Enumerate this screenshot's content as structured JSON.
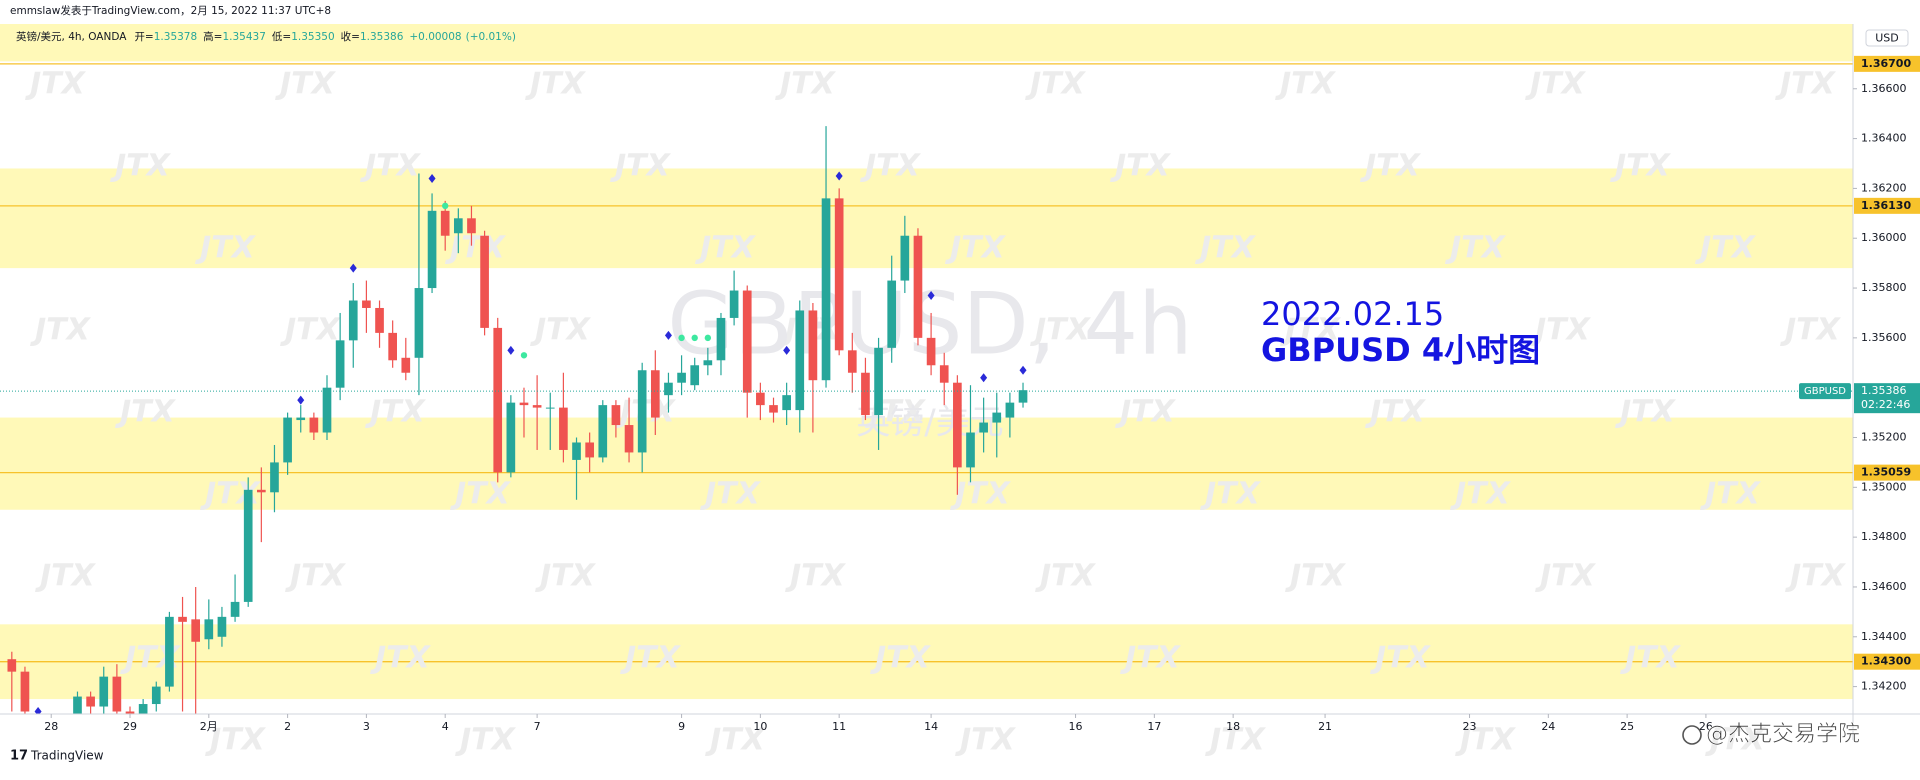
{
  "chart_data": {
    "type": "candlestick",
    "header": "emmslaw发表于TradingView.com，2月 15, 2022 11:37 UTC+8",
    "symbol_line": "英镑/美元, 4h, OANDA",
    "ohlc_legend": [
      {
        "key": "开=",
        "value": "1.35378"
      },
      {
        "key": "高=",
        "value": "1.35437"
      },
      {
        "key": "低=",
        "value": "1.35350"
      },
      {
        "key": "收=",
        "value": "1.35386"
      },
      {
        "key": "+0.00008",
        "value": "(+0.01%)"
      }
    ],
    "watermark_symbol": "GBPUSD, 4h",
    "watermark_name": "英镑/美元",
    "watermark_logo": "JTX",
    "annotation": [
      "2022.02.15",
      "GBPUSD 4小时图"
    ],
    "annotation_color": "#1414e0",
    "currency": "USD",
    "footer_brand": "TradingView",
    "footer_credit": "@杰克交易学院",
    "up_color": "#26a69a",
    "down_color": "#ef5350",
    "zone_color": "#fff9b8",
    "level_color": "#f7c22b",
    "ylim": [
      1.3409,
      1.3686
    ],
    "xlim": [
      -0.9,
      140.2
    ],
    "yticks": [
      {
        "value": 1.366,
        "label": "1.36600"
      },
      {
        "value": 1.364,
        "label": "1.36400"
      },
      {
        "value": 1.362,
        "label": "1.36200"
      },
      {
        "value": 1.36,
        "label": "1.36000"
      },
      {
        "value": 1.358,
        "label": "1.35800"
      },
      {
        "value": 1.356,
        "label": "1.35600"
      },
      {
        "value": 1.352,
        "label": "1.35200"
      },
      {
        "value": 1.35,
        "label": "1.35000"
      },
      {
        "value": 1.348,
        "label": "1.34800"
      },
      {
        "value": 1.346,
        "label": "1.34600"
      },
      {
        "value": 1.344,
        "label": "1.34400"
      },
      {
        "value": 1.342,
        "label": "1.34200"
      }
    ],
    "xticks": [
      {
        "value": 3,
        "label": "28"
      },
      {
        "value": 9,
        "label": "29"
      },
      {
        "value": 15,
        "label": "2月"
      },
      {
        "value": 21,
        "label": "2"
      },
      {
        "value": 27,
        "label": "3"
      },
      {
        "value": 33,
        "label": "4"
      },
      {
        "value": 40,
        "label": "7"
      },
      {
        "value": 51,
        "label": "9"
      },
      {
        "value": 57,
        "label": "10"
      },
      {
        "value": 63,
        "label": "11"
      },
      {
        "value": 70,
        "label": "14"
      },
      {
        "value": 81,
        "label": "16"
      },
      {
        "value": 87,
        "label": "17"
      },
      {
        "value": 93,
        "label": "18"
      },
      {
        "value": 100,
        "label": "21"
      },
      {
        "value": 111,
        "label": "23"
      },
      {
        "value": 117,
        "label": "24"
      },
      {
        "value": 123,
        "label": "25"
      },
      {
        "value": 129,
        "label": "26"
      }
    ],
    "zones": [
      [
        1.3671,
        1.3686
      ],
      [
        1.3588,
        1.3628
      ],
      [
        1.3491,
        1.3528
      ],
      [
        1.3415,
        1.3445
      ]
    ],
    "levels": [
      {
        "value": 1.367,
        "label": "1.36700"
      },
      {
        "value": 1.3613,
        "label": "1.36130"
      },
      {
        "value": 1.35059,
        "label": "1.35059"
      },
      {
        "value": 1.343,
        "label": "1.34300"
      }
    ],
    "last_price": {
      "value": 1.35386,
      "label": "1.35386"
    },
    "symbol_tag": "GBPUSD",
    "countdown": "02:22:46",
    "open": [
      1.3431,
      1.3426,
      1.3409,
      1.3405,
      1.3408,
      1.3408,
      1.3416,
      1.3412,
      1.3424,
      1.341,
      1.3405,
      1.3413,
      1.342,
      1.3448,
      1.3447,
      1.3439,
      1.344,
      1.3448,
      1.3454,
      1.3499,
      1.3498,
      1.351,
      1.3527,
      1.3528,
      1.3522,
      1.354,
      1.3559,
      1.3575,
      1.3572,
      1.3562,
      1.3552,
      1.3552,
      1.358,
      1.3611,
      1.3602,
      1.3608,
      1.3601,
      1.3564,
      1.3506,
      1.3534,
      1.3533,
      1.3532,
      1.3532,
      1.3511,
      1.3518,
      1.3512,
      1.3533,
      1.3525,
      1.3514,
      1.3547,
      1.3537,
      1.3542,
      1.3541,
      1.3549,
      1.3551,
      1.3568,
      1.3579,
      1.3538,
      1.3533,
      1.3531,
      1.3531,
      1.3571,
      1.3543,
      1.3616,
      1.3555,
      1.3546,
      1.3529,
      1.3556,
      1.3583,
      1.3601,
      1.356,
      1.3549,
      1.3542,
      1.3508,
      1.3522,
      1.3526,
      1.3528,
      1.3534
    ],
    "high": [
      1.3434,
      1.3428,
      1.3411,
      1.3409,
      1.3409,
      1.3418,
      1.3418,
      1.3428,
      1.3429,
      1.3412,
      1.3415,
      1.3422,
      1.345,
      1.3456,
      1.346,
      1.3455,
      1.3452,
      1.3465,
      1.3504,
      1.3508,
      1.3517,
      1.353,
      1.3533,
      1.353,
      1.3545,
      1.357,
      1.3582,
      1.3583,
      1.3575,
      1.3567,
      1.356,
      1.3626,
      1.3618,
      1.3615,
      1.3612,
      1.3613,
      1.3603,
      1.3568,
      1.3537,
      1.354,
      1.3545,
      1.3538,
      1.3546,
      1.352,
      1.3522,
      1.3535,
      1.3535,
      1.3536,
      1.355,
      1.3555,
      1.3546,
      1.3553,
      1.3552,
      1.3556,
      1.357,
      1.3587,
      1.3581,
      1.3542,
      1.3536,
      1.3542,
      1.3575,
      1.3574,
      1.3645,
      1.362,
      1.3562,
      1.3552,
      1.356,
      1.3593,
      1.3609,
      1.3604,
      1.357,
      1.3554,
      1.3545,
      1.3541,
      1.3536,
      1.3538,
      1.3538,
      1.3542
    ],
    "low": [
      1.341,
      1.3405,
      1.3403,
      1.3403,
      1.3403,
      1.3405,
      1.3408,
      1.3405,
      1.3405,
      1.3403,
      1.3404,
      1.341,
      1.3418,
      1.341,
      1.3405,
      1.3435,
      1.3436,
      1.3446,
      1.3452,
      1.3478,
      1.349,
      1.3505,
      1.3522,
      1.3519,
      1.3519,
      1.3535,
      1.3548,
      1.3562,
      1.3556,
      1.3548,
      1.3543,
      1.3537,
      1.3578,
      1.3595,
      1.3594,
      1.3597,
      1.3561,
      1.3502,
      1.3504,
      1.352,
      1.3515,
      1.3515,
      1.351,
      1.3495,
      1.3506,
      1.351,
      1.352,
      1.351,
      1.3506,
      1.3521,
      1.353,
      1.3537,
      1.3539,
      1.3545,
      1.3545,
      1.3565,
      1.3528,
      1.3527,
      1.3526,
      1.3525,
      1.3522,
      1.3522,
      1.354,
      1.3553,
      1.3538,
      1.3527,
      1.3515,
      1.355,
      1.3578,
      1.3557,
      1.3545,
      1.3533,
      1.3497,
      1.3502,
      1.3514,
      1.3512,
      1.352,
      1.3532
    ],
    "close": [
      1.3426,
      1.341,
      1.3405,
      1.3408,
      1.3406,
      1.3416,
      1.3412,
      1.3424,
      1.341,
      1.3405,
      1.3413,
      1.342,
      1.3448,
      1.3446,
      1.3438,
      1.3447,
      1.3448,
      1.3454,
      1.3499,
      1.3498,
      1.351,
      1.3528,
      1.3528,
      1.3522,
      1.354,
      1.3559,
      1.3575,
      1.3572,
      1.3562,
      1.3551,
      1.3546,
      1.358,
      1.3611,
      1.3601,
      1.3608,
      1.3602,
      1.3564,
      1.3506,
      1.3534,
      1.3533,
      1.3532,
      1.3532,
      1.3515,
      1.3518,
      1.3512,
      1.3533,
      1.3525,
      1.3514,
      1.3547,
      1.3528,
      1.3542,
      1.3546,
      1.3549,
      1.3551,
      1.3568,
      1.3579,
      1.3538,
      1.3533,
      1.353,
      1.3537,
      1.3571,
      1.3543,
      1.3616,
      1.3555,
      1.3546,
      1.3529,
      1.3556,
      1.3583,
      1.3601,
      1.356,
      1.3549,
      1.3542,
      1.3508,
      1.3522,
      1.3526,
      1.353,
      1.3534,
      1.3539
    ],
    "markers": [
      {
        "x": 2,
        "y": 1.341,
        "shape": "diamond",
        "color": "#2a2ad8"
      },
      {
        "x": 22,
        "y": 1.3535,
        "shape": "diamond",
        "color": "#2a2ad8"
      },
      {
        "x": 26,
        "y": 1.3588,
        "shape": "diamond",
        "color": "#2a2ad8"
      },
      {
        "x": 32,
        "y": 1.3624,
        "shape": "diamond",
        "color": "#2a2ad8"
      },
      {
        "x": 33,
        "y": 1.3613,
        "shape": "dot",
        "color": "#3de8a0"
      },
      {
        "x": 38,
        "y": 1.3555,
        "shape": "diamond",
        "color": "#2a2ad8"
      },
      {
        "x": 39,
        "y": 1.3553,
        "shape": "dot",
        "color": "#3de8a0"
      },
      {
        "x": 50,
        "y": 1.3561,
        "shape": "diamond",
        "color": "#2a2ad8"
      },
      {
        "x": 51,
        "y": 1.356,
        "shape": "dot",
        "color": "#3de8a0"
      },
      {
        "x": 52,
        "y": 1.356,
        "shape": "dot",
        "color": "#3de8a0"
      },
      {
        "x": 53,
        "y": 1.356,
        "shape": "dot",
        "color": "#3de8a0"
      },
      {
        "x": 59,
        "y": 1.3555,
        "shape": "diamond",
        "color": "#2a2ad8"
      },
      {
        "x": 63,
        "y": 1.3625,
        "shape": "diamond",
        "color": "#2a2ad8"
      },
      {
        "x": 70,
        "y": 1.3577,
        "shape": "diamond",
        "color": "#2a2ad8"
      },
      {
        "x": 74,
        "y": 1.3544,
        "shape": "diamond",
        "color": "#2a2ad8"
      },
      {
        "x": 77,
        "y": 1.3547,
        "shape": "diamond",
        "color": "#2a2ad8"
      }
    ]
  }
}
